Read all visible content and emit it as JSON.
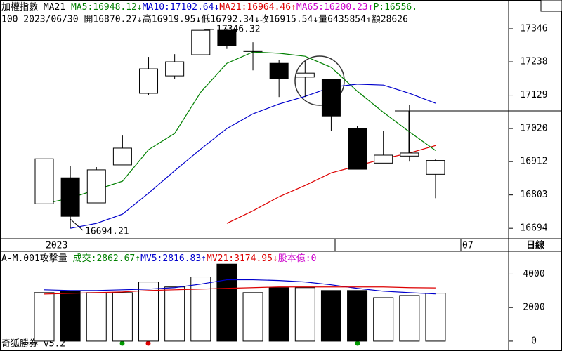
{
  "chart_data": [
    {
      "type": "candlestick",
      "header": [
        {
          "text": "加權指數 MA21 ",
          "color": "#000000"
        },
        {
          "text": "MA5:16948.12↓",
          "color": "#008000"
        },
        {
          "text": "MA10:17102.64↓",
          "color": "#0000cc"
        },
        {
          "text": "MA21:16964.46↑",
          "color": "#dd0000"
        },
        {
          "text": "MA65:16200.23↑",
          "color": "#cc00cc"
        },
        {
          "text": "P:16556.",
          "color": "#008000"
        }
      ],
      "info": "100 2023/06/30 開16870.27↓高16919.95↓低16792.34↓收16915.54↓量6435854↑額28626",
      "open": [
        16774,
        16859,
        16777,
        16901,
        17135,
        17192,
        17261,
        17341,
        17272,
        17233,
        17188,
        17181,
        17020,
        16907,
        16930,
        16870.27
      ],
      "high": [
        16921,
        16898,
        16894,
        16997,
        17254,
        17263,
        17340,
        17346.32,
        17302,
        17243,
        17240,
        17183,
        17027,
        17011,
        17096,
        16919.95
      ],
      "low": [
        16774,
        16694.21,
        16777,
        16901,
        17130,
        17183,
        17261,
        17280,
        17210,
        17123,
        17123,
        17013,
        16887,
        16907,
        16912,
        16792.34
      ],
      "close": [
        16921,
        16733,
        16885,
        16956,
        17215,
        17238,
        17341,
        17291,
        17274,
        17183,
        17201,
        17061,
        16887,
        16933,
        16940,
        16915.54
      ],
      "series": [
        {
          "color": "#008000",
          "values": [
            16774,
            16793,
            16820,
            16848,
            16951,
            17004,
            17139,
            17233,
            17270,
            17266,
            17256,
            17220,
            17142,
            17073,
            17009,
            16948.12
          ]
        },
        {
          "color": "#0000cc",
          "values": [
            null,
            16694,
            16710,
            16740,
            16809,
            16882,
            16953,
            17020,
            17068,
            17100,
            17125,
            17155,
            17165,
            17162,
            17135,
            17102.64
          ]
        },
        {
          "color": "#dd0000",
          "values": [
            null,
            null,
            null,
            null,
            null,
            null,
            null,
            16710,
            16751,
            16797,
            16834,
            16875,
            16898,
            16921,
            16940,
            16964.46
          ]
        }
      ],
      "ylim": [
        16660,
        17440
      ],
      "yticks": [
        17346,
        17238,
        17129,
        17020,
        16912,
        16803,
        16694
      ],
      "annotations": [
        "17346.32",
        "16694.21"
      ],
      "x_labels": [
        "2023",
        "07"
      ],
      "period": "日線"
    },
    {
      "type": "volume",
      "header": [
        {
          "text": "A-M.001攻擊量 ",
          "color": "#000000"
        },
        {
          "text": "成交:2862.67↑",
          "color": "#008000"
        },
        {
          "text": "MV5:2816.83↑",
          "color": "#0000cc"
        },
        {
          "text": "MV21:3174.95↓",
          "color": "#dd0000"
        },
        {
          "text": "股本億:0",
          "color": "#cc00cc"
        }
      ],
      "values": [
        2894,
        2979,
        2894,
        2894,
        3532,
        3234,
        3830,
        4596,
        2894,
        3191,
        3191,
        3021,
        3021,
        2596,
        2723,
        2862.67
      ],
      "series": [
        {
          "color": "#0000cc",
          "values": [
            3064,
            3021,
            3021,
            3064,
            3106,
            3191,
            3404,
            3660,
            3660,
            3617,
            3532,
            3362,
            3149,
            2979,
            2894,
            2816.83
          ]
        },
        {
          "color": "#dd0000",
          "values": [
            2809,
            2851,
            2894,
            2936,
            3021,
            3064,
            3106,
            3149,
            3191,
            3234,
            3234,
            3234,
            3234,
            3234,
            3191,
            3174.95
          ]
        }
      ],
      "ylim": [
        -380,
        5360
      ],
      "yticks": [
        4000,
        2000,
        0
      ]
    }
  ],
  "footer": "奇狐勝券 v5.2"
}
